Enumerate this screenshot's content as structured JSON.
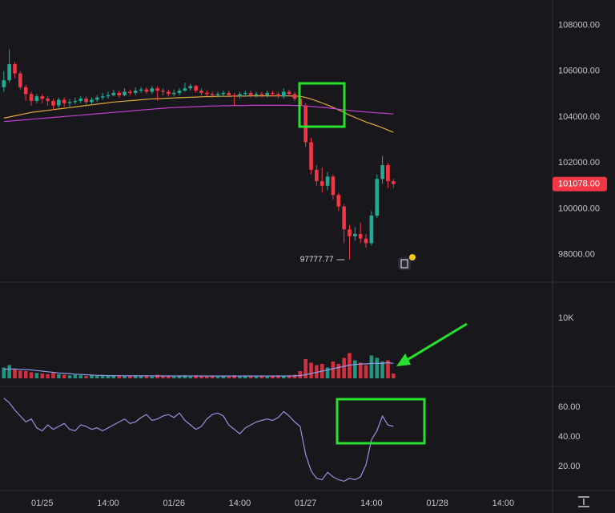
{
  "chart_data": [
    {
      "type": "candlestick",
      "open": [
        105300,
        105600,
        106300,
        105900,
        105300,
        105000,
        104700,
        104900,
        104800,
        104700,
        104500,
        104750,
        104600,
        104650,
        104700,
        104800,
        104650,
        104750,
        104850,
        104900,
        104950,
        105050,
        104950,
        105100,
        105050,
        105150,
        105200,
        105100,
        105250,
        105150,
        105100,
        105000,
        105050,
        105150,
        105250,
        105350,
        105150,
        105050,
        105000,
        104950,
        105000,
        105050,
        104950,
        104900,
        105000,
        105050,
        104950,
        105000,
        104950,
        105050,
        105000,
        104900,
        105100,
        105000,
        104800,
        104500,
        102900,
        101700,
        101200,
        101000,
        101400,
        100600,
        100100,
        99100,
        98800,
        98900,
        98700,
        98500,
        99700,
        101300,
        101900,
        101200
      ],
      "high": [
        106000,
        106950,
        106400,
        106000,
        105400,
        105100,
        105000,
        105000,
        104900,
        104800,
        104850,
        104850,
        104800,
        104850,
        104900,
        104900,
        104850,
        104950,
        105050,
        105100,
        105200,
        105150,
        105250,
        105200,
        105300,
        105300,
        105300,
        105350,
        105350,
        105250,
        105200,
        105200,
        105250,
        105500,
        105450,
        105400,
        105250,
        105150,
        105100,
        105100,
        105150,
        105150,
        105050,
        105100,
        105150,
        105150,
        105100,
        105100,
        105150,
        105150,
        105100,
        105250,
        105200,
        105100,
        104900,
        104600,
        103100,
        101900,
        101800,
        101600,
        101500,
        100700,
        100200,
        99300,
        99200,
        99400,
        98900,
        99900,
        101500,
        102300,
        102000,
        101300
      ],
      "low": [
        105100,
        105500,
        105700,
        105200,
        104700,
        104500,
        104600,
        104600,
        104500,
        104300,
        104400,
        104450,
        104450,
        104550,
        104600,
        104550,
        104550,
        104650,
        104750,
        104800,
        104900,
        104850,
        104900,
        104950,
        104950,
        105050,
        105000,
        105000,
        104700,
        104950,
        104900,
        104900,
        104950,
        105100,
        105150,
        105050,
        104950,
        104900,
        104850,
        104850,
        104900,
        104850,
        104500,
        104800,
        104900,
        104850,
        104850,
        104850,
        104850,
        104900,
        104800,
        104800,
        104900,
        104700,
        104300,
        102700,
        101500,
        101000,
        100700,
        100800,
        100400,
        99900,
        98500,
        97777.77,
        98600,
        98500,
        98300,
        98400,
        99600,
        101100,
        100900,
        100900
      ],
      "close": [
        105600,
        106300,
        105900,
        105300,
        105000,
        104700,
        104900,
        104800,
        104700,
        104500,
        104750,
        104600,
        104650,
        104700,
        104800,
        104650,
        104750,
        104850,
        104900,
        104950,
        105050,
        104950,
        105100,
        105050,
        105150,
        105200,
        105100,
        105250,
        105150,
        105100,
        105000,
        105050,
        105150,
        105250,
        105350,
        105150,
        105050,
        105000,
        104950,
        105000,
        105050,
        104950,
        104900,
        105000,
        105050,
        104950,
        105000,
        104950,
        105050,
        105000,
        104900,
        105100,
        105000,
        104800,
        104500,
        102900,
        101700,
        101200,
        101000,
        101400,
        100600,
        100100,
        99100,
        98800,
        98900,
        98700,
        98500,
        99700,
        101300,
        101900,
        101200,
        101078
      ],
      "close_label": "101078.00",
      "up_color": "#22ab94",
      "down_color": "#f23645",
      "lines": [
        {
          "color": "#e0a83a",
          "values": [
            103950,
            104000,
            104050,
            104100,
            104150,
            104200,
            104230,
            104260,
            104290,
            104320,
            104350,
            104380,
            104410,
            104440,
            104470,
            104500,
            104530,
            104560,
            104590,
            104620,
            104650,
            104670,
            104690,
            104710,
            104730,
            104750,
            104770,
            104790,
            104800,
            104810,
            104820,
            104830,
            104840,
            104850,
            104860,
            104870,
            104880,
            104890,
            104890,
            104900,
            104900,
            104900,
            104910,
            104910,
            104910,
            104920,
            104920,
            104920,
            104920,
            104920,
            104920,
            104920,
            104920,
            104910,
            104900,
            104850,
            104780,
            104700,
            104610,
            104520,
            104420,
            104310,
            104200,
            104080,
            103980,
            103880,
            103780,
            103700,
            103620,
            103530,
            103430,
            103330
          ]
        },
        {
          "color": "#c23fd0",
          "values": [
            103800,
            103820,
            103840,
            103860,
            103880,
            103900,
            103920,
            103940,
            103960,
            103980,
            104000,
            104020,
            104040,
            104060,
            104080,
            104100,
            104120,
            104140,
            104160,
            104180,
            104200,
            104220,
            104240,
            104260,
            104280,
            104300,
            104320,
            104340,
            104360,
            104380,
            104400,
            104410,
            104420,
            104430,
            104440,
            104450,
            104460,
            104470,
            104480,
            104480,
            104490,
            104490,
            104500,
            104500,
            104500,
            104510,
            104510,
            104510,
            104510,
            104510,
            104510,
            104510,
            104510,
            104500,
            104500,
            104480,
            104460,
            104440,
            104420,
            104400,
            104370,
            104340,
            104310,
            104290,
            104260,
            104240,
            104220,
            104200,
            104180,
            104170,
            104150,
            104130
          ]
        }
      ],
      "xlim": [
        -0.7,
        100
      ],
      "ylim": [
        96800,
        109100
      ],
      "yticks": [
        {
          "value": 98000,
          "label": "98000.00"
        },
        {
          "value": 100000,
          "label": "100000.00"
        },
        {
          "value": 102000,
          "label": "102000.00"
        },
        {
          "value": 104000,
          "label": "104000.00"
        },
        {
          "value": 106000,
          "label": "106000.00"
        },
        {
          "value": 108000,
          "label": "108000.00"
        }
      ],
      "grid": false
    },
    {
      "type": "bar",
      "values": [
        1800,
        2200,
        1500,
        1300,
        1200,
        1000,
        900,
        800,
        700,
        900,
        700,
        600,
        500,
        600,
        500,
        400,
        500,
        400,
        500,
        400,
        400,
        500,
        400,
        400,
        500,
        400,
        400,
        300,
        600,
        400,
        400,
        300,
        400,
        500,
        300,
        400,
        400,
        300,
        400,
        300,
        400,
        300,
        500,
        300,
        400,
        400,
        300,
        400,
        300,
        400,
        500,
        400,
        500,
        600,
        1200,
        3200,
        2600,
        2200,
        2400,
        1800,
        2800,
        2400,
        3400,
        4200,
        3000,
        2600,
        2200,
        3800,
        3400,
        2800,
        3000,
        800
      ],
      "lines": [
        {
          "color": "#8f9be8",
          "values": [
            1500,
            1550,
            1550,
            1500,
            1450,
            1400,
            1300,
            1200,
            1100,
            1000,
            900,
            850,
            800,
            700,
            650,
            600,
            550,
            500,
            480,
            460,
            450,
            440,
            430,
            420,
            420,
            410,
            410,
            400,
            400,
            400,
            400,
            400,
            400,
            400,
            400,
            400,
            390,
            390,
            390,
            390,
            380,
            380,
            380,
            380,
            380,
            380,
            380,
            380,
            380,
            380,
            390,
            390,
            400,
            410,
            450,
            600,
            800,
            1000,
            1200,
            1400,
            1600,
            1800,
            2000,
            2200,
            2300,
            2400,
            2400,
            2500,
            2500,
            2500,
            2600,
            2500
          ]
        }
      ],
      "xlim": [
        -0.7,
        100
      ],
      "ylim": [
        0,
        16000
      ],
      "yticks": [
        {
          "value": 10000,
          "label": "10K"
        }
      ],
      "grid": false
    },
    {
      "type": "line",
      "color": "#9a8fe0",
      "values": [
        66,
        63,
        58,
        54,
        50,
        52,
        46,
        44,
        48,
        45,
        47,
        49,
        45,
        44,
        48,
        47,
        45,
        46,
        44,
        46,
        48,
        50,
        52,
        49,
        50,
        53,
        55,
        51,
        52,
        54,
        55,
        53,
        56,
        51,
        48,
        45,
        47,
        52,
        55,
        56,
        54,
        48,
        45,
        42,
        46,
        48,
        50,
        51,
        52,
        51,
        53,
        57,
        54,
        50,
        47,
        28,
        17,
        12,
        11,
        16,
        13,
        11,
        10,
        12,
        11,
        13,
        21,
        38,
        44,
        54,
        48,
        47
      ],
      "xlim": [
        -0.7,
        100
      ],
      "xticks": [
        {
          "value": 7,
          "label": "01/25"
        },
        {
          "value": 19,
          "label": "14:00"
        },
        {
          "value": 31,
          "label": "01/26"
        },
        {
          "value": 43,
          "label": "14:00"
        },
        {
          "value": 55,
          "label": "01/27"
        },
        {
          "value": 67,
          "label": "14:00"
        },
        {
          "value": 79,
          "label": "01/28"
        },
        {
          "value": 91,
          "label": "14:00"
        }
      ],
      "ylim": [
        4,
        74
      ],
      "yticks": [
        {
          "value": 20,
          "label": "20.00"
        },
        {
          "value": 40,
          "label": "40.00"
        },
        {
          "value": 60,
          "label": "60.00"
        }
      ],
      "grid": false
    }
  ]
}
